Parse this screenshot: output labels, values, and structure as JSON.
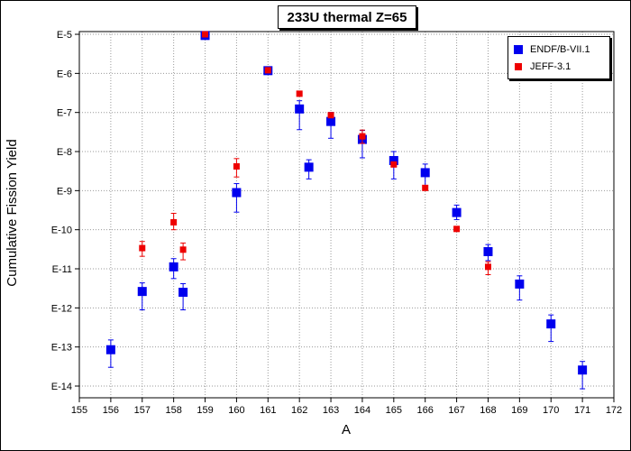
{
  "chart_data": {
    "type": "scatter",
    "title": "233U thermal Z=65",
    "xlabel": "A",
    "ylabel": "Cumulative Fission Yield",
    "xlim": [
      155,
      172
    ],
    "ylim_exponent": [
      -14.3,
      -4.93
    ],
    "y_scale": "log",
    "grid": true,
    "legend_position": "top-right",
    "x_ticks": [
      "155",
      "156",
      "157",
      "158",
      "159",
      "160",
      "161",
      "162",
      "163",
      "164",
      "165",
      "166",
      "167",
      "168",
      "169",
      "170",
      "171",
      "172"
    ],
    "y_ticks": [
      {
        "exp": -5,
        "label": "E-5"
      },
      {
        "exp": -6,
        "label": "E-6"
      },
      {
        "exp": -7,
        "label": "E-7"
      },
      {
        "exp": -8,
        "label": "E-8"
      },
      {
        "exp": -9,
        "label": "E-9"
      },
      {
        "exp": -10,
        "label": "E-10"
      },
      {
        "exp": -11,
        "label": "E-11"
      },
      {
        "exp": -12,
        "label": "E-12"
      },
      {
        "exp": -13,
        "label": "E-13"
      },
      {
        "exp": -14,
        "label": "E-14"
      }
    ],
    "series": [
      {
        "name": "ENDF/B-VII.1",
        "color": "#0000ee",
        "marker": "square-large",
        "points": [
          {
            "x": 156,
            "y_exp": -13.07,
            "err_low": -13.52,
            "err_high": -12.82
          },
          {
            "x": 157,
            "y_exp": -11.58,
            "err_low": -12.05,
            "err_high": -11.36
          },
          {
            "x": 158,
            "y_exp": -10.95,
            "err_low": -11.25,
            "err_high": -10.74
          },
          {
            "x": 158.3,
            "y_exp": -11.6,
            "err_low": -12.05,
            "err_high": -11.38
          },
          {
            "x": 159,
            "y_exp": -5.03,
            "err_low": -5.08,
            "err_high": -4.98
          },
          {
            "x": 160,
            "y_exp": -9.05,
            "err_low": -9.55,
            "err_high": -8.82
          },
          {
            "x": 161,
            "y_exp": -5.93,
            "err_low": -5.97,
            "err_high": -5.89
          },
          {
            "x": 162,
            "y_exp": -6.91,
            "err_low": -7.44,
            "err_high": -6.7
          },
          {
            "x": 162.3,
            "y_exp": -8.4,
            "err_low": -8.7,
            "err_high": -8.21
          },
          {
            "x": 163,
            "y_exp": -7.23,
            "err_low": -7.66,
            "err_high": -7.0
          },
          {
            "x": 164,
            "y_exp": -7.69,
            "err_low": -8.16,
            "err_high": -7.46
          },
          {
            "x": 165,
            "y_exp": -8.23,
            "err_low": -8.7,
            "err_high": -8.0
          },
          {
            "x": 166,
            "y_exp": -8.54,
            "err_low": -8.95,
            "err_high": -8.32
          },
          {
            "x": 167,
            "y_exp": -9.56,
            "err_low": -9.74,
            "err_high": -9.37
          },
          {
            "x": 168,
            "y_exp": -10.56,
            "err_low": -10.79,
            "err_high": -10.38
          },
          {
            "x": 169,
            "y_exp": -11.39,
            "err_low": -11.8,
            "err_high": -11.18
          },
          {
            "x": 170,
            "y_exp": -12.41,
            "err_low": -12.86,
            "err_high": -12.18
          },
          {
            "x": 171,
            "y_exp": -13.59,
            "err_low": -14.07,
            "err_high": -13.37
          }
        ]
      },
      {
        "name": "JEFF-3.1",
        "color": "#ee0000",
        "marker": "square-small",
        "points": [
          {
            "x": 157,
            "y_exp": -10.47,
            "err_low": -10.68,
            "err_high": -10.3
          },
          {
            "x": 158,
            "y_exp": -9.81,
            "err_low": -10.0,
            "err_high": -9.58
          },
          {
            "x": 158.3,
            "y_exp": -10.51,
            "err_low": -10.77,
            "err_high": -10.34
          },
          {
            "x": 159,
            "y_exp": -5.0,
            "err_low": -5.04,
            "err_high": -4.96
          },
          {
            "x": 160,
            "y_exp": -8.38,
            "err_low": -8.65,
            "err_high": -8.18
          },
          {
            "x": 161,
            "y_exp": -5.92,
            "err_low": -5.96,
            "err_high": -5.88
          },
          {
            "x": 162,
            "y_exp": -6.52,
            "err_low": -6.56,
            "err_high": -6.48
          },
          {
            "x": 163,
            "y_exp": -7.07,
            "err_low": -7.11,
            "err_high": -7.03
          },
          {
            "x": 164,
            "y_exp": -7.61,
            "err_low": -7.79,
            "err_high": -7.45
          },
          {
            "x": 165,
            "y_exp": -8.33,
            "err_low": -8.38,
            "err_high": -8.29
          },
          {
            "x": 166,
            "y_exp": -8.93,
            "err_low": -8.98,
            "err_high": -8.88
          },
          {
            "x": 167,
            "y_exp": -9.98,
            "err_low": -10.03,
            "err_high": -9.94
          },
          {
            "x": 168,
            "y_exp": -10.95,
            "err_low": -11.15,
            "err_high": -10.82
          }
        ]
      }
    ]
  }
}
